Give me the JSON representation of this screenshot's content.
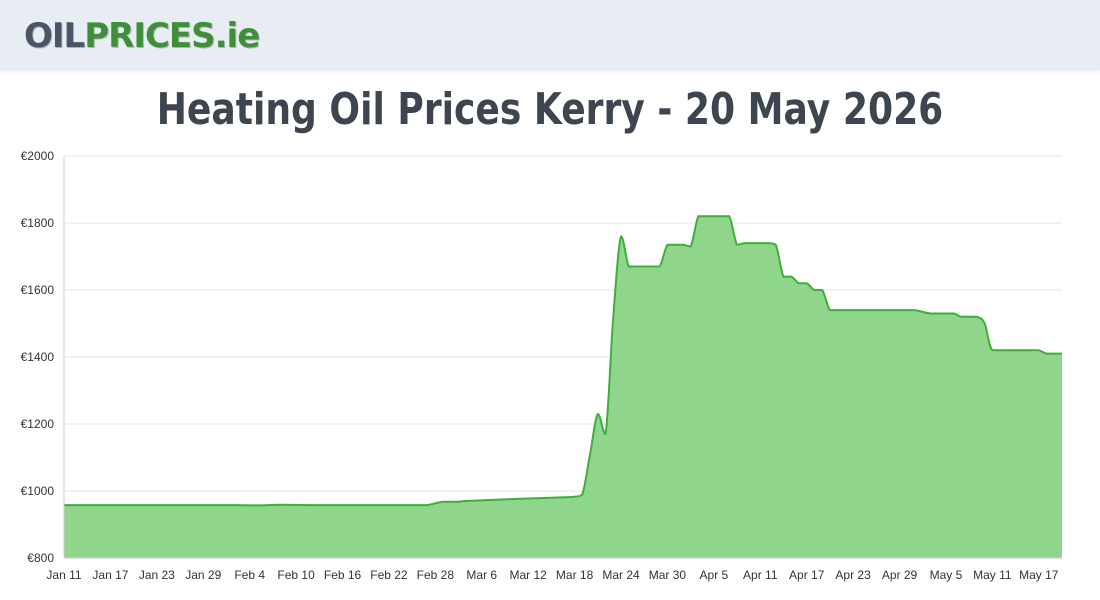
{
  "header": {
    "logo_part1": "OIL",
    "logo_part2": "PRICES",
    "logo_part3": ".ie"
  },
  "colors": {
    "header_bg": "#e8ecf3",
    "line": "#3fae3a",
    "fill": "#8fd68c",
    "grid": "#e5e5e5"
  },
  "chart_data": {
    "type": "area",
    "title": "Heating Oil Prices Kerry - 20 May 2026",
    "xlabel": "",
    "ylabel": "",
    "ylim": [
      800,
      2000
    ],
    "grid": true,
    "legend": "none",
    "y_ticks": [
      "€800",
      "€1000",
      "€1200",
      "€1400",
      "€1600",
      "€1800",
      "€2000"
    ],
    "x_ticks": [
      "Jan 11",
      "Jan 17",
      "Jan 23",
      "Jan 29",
      "Feb 4",
      "Feb 10",
      "Feb 16",
      "Feb 22",
      "Feb 28",
      "Mar 6",
      "Mar 12",
      "Mar 18",
      "Mar 24",
      "Mar 30",
      "Apr 5",
      "Apr 11",
      "Apr 17",
      "Apr 23",
      "Apr 29",
      "May 5",
      "May 11",
      "May 17"
    ],
    "series": [
      {
        "x": [
          "Jan 11",
          "Jan 15",
          "Jan 20",
          "Jan 25",
          "Jan 30",
          "Feb 2",
          "Feb 5",
          "Feb 8",
          "Feb 12",
          "Feb 18",
          "Feb 22",
          "Feb 26",
          "Feb 27",
          "Mar 1",
          "Mar 3",
          "Mar 4",
          "Mar 10",
          "Mar 15",
          "Mar 18",
          "Mar 19",
          "Mar 20",
          "Mar 21",
          "Mar 22",
          "Mar 23",
          "Mar 24",
          "Mar 25",
          "Mar 26",
          "Mar 27",
          "Mar 28",
          "Mar 29",
          "Mar 30",
          "Mar 31",
          "Apr 1",
          "Apr 2",
          "Apr 3",
          "Apr 4",
          "Apr 5",
          "Apr 6",
          "Apr 7",
          "Apr 8",
          "Apr 9",
          "Apr 10",
          "Apr 11",
          "Apr 12",
          "Apr 13",
          "Apr 14",
          "Apr 15",
          "Apr 16",
          "Apr 17",
          "Apr 18",
          "Apr 19",
          "Apr 20",
          "Apr 21",
          "Apr 22",
          "Apr 25",
          "Apr 28",
          "Apr 30",
          "May 1",
          "May 3",
          "May 5",
          "May 6",
          "May 7",
          "May 8",
          "May 9",
          "May 10",
          "May 11",
          "May 13",
          "May 15",
          "May 16",
          "May 17",
          "May 18",
          "May 19",
          "May 20"
        ],
        "values": [
          958,
          958,
          958,
          958,
          958,
          958,
          957,
          959,
          958,
          958,
          958,
          958,
          958,
          968,
          968,
          970,
          976,
          980,
          983,
          990,
          1110,
          1230,
          1170,
          1520,
          1760,
          1670,
          1670,
          1670,
          1670,
          1670,
          1735,
          1735,
          1735,
          1730,
          1820,
          1820,
          1820,
          1820,
          1820,
          1735,
          1740,
          1740,
          1740,
          1740,
          1735,
          1640,
          1640,
          1620,
          1620,
          1600,
          1600,
          1540,
          1540,
          1540,
          1540,
          1540,
          1540,
          1540,
          1530,
          1530,
          1530,
          1520,
          1520,
          1520,
          1500,
          1420,
          1420,
          1420,
          1420,
          1420,
          1410,
          1410,
          1410
        ]
      }
    ]
  }
}
